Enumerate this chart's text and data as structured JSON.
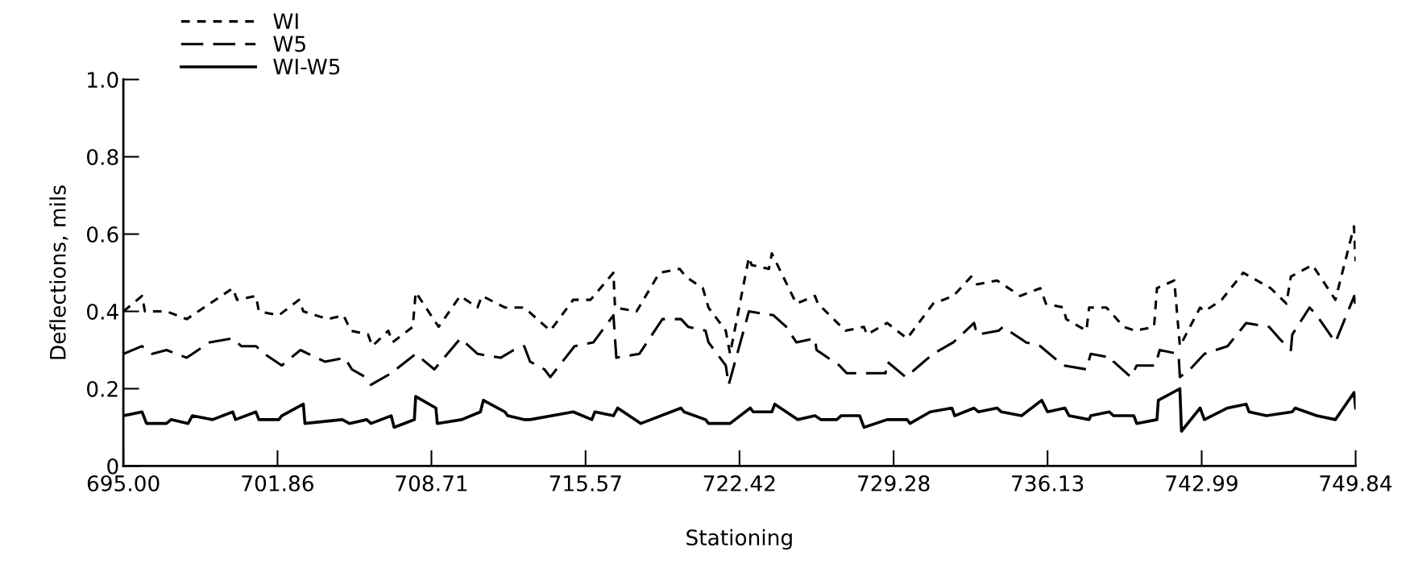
{
  "chart_data": {
    "type": "line",
    "xlabel": "Stationing",
    "ylabel": "Deflections, mils",
    "legend": "top left",
    "grid": false,
    "marker": "none",
    "xlim": [
      695.0,
      749.84
    ],
    "ylim": [
      0,
      1.0
    ],
    "yticks": [
      0,
      0.2,
      0.4,
      0.6,
      0.8,
      {
        "value": 1,
        "label": "1.0"
      }
    ],
    "xticks": [
      {
        "value": 695.0,
        "label": "695.00"
      },
      {
        "value": 701.86,
        "label": "701.86"
      },
      {
        "value": 708.71,
        "label": "708.71"
      },
      {
        "value": 715.57,
        "label": "715.57"
      },
      {
        "value": 722.42,
        "label": "722.42"
      },
      {
        "value": 729.28,
        "label": "729.28"
      },
      {
        "value": 736.13,
        "label": "736.13"
      },
      {
        "value": 742.99,
        "label": "742.99"
      },
      {
        "value": 749.84,
        "label": "749.84"
      }
    ],
    "series": [
      {
        "name": "WI",
        "color": "#000000",
        "line_style": "dotted",
        "x": [
          695.0,
          695.83,
          695.96,
          696.92,
          697.82,
          699.87,
          700.06,
          700.9,
          701.03,
          701.92,
          702.82,
          703.01,
          704.1,
          704.8,
          705.12,
          705.89,
          706.08,
          706.79,
          706.98,
          707.88,
          708.01,
          709.03,
          709.99,
          710.76,
          710.96,
          711.98,
          712.84,
          714.0,
          715.02,
          715.79,
          716.81,
          716.88,
          717.84,
          718.86,
          719.76,
          720.02,
          720.79,
          721.04,
          721.81,
          722.0,
          722.84,
          722.96,
          723.73,
          723.86,
          724.95,
          725.78,
          725.91,
          727.13,
          727.96,
          728.09,
          728.99,
          729.88,
          731.04,
          731.94,
          732.73,
          732.99,
          733.88,
          734.91,
          735.81,
          736.06,
          736.83,
          736.96,
          737.86,
          737.98,
          738.75,
          739.52,
          740.04,
          740.87,
          741.0,
          741.77,
          742.02,
          742.92,
          743.11,
          743.88,
          744.84,
          746.06,
          746.76,
          746.96,
          747.92,
          748.94,
          749.77,
          749.84
        ],
        "values": [
          0.4,
          0.44,
          0.4,
          0.4,
          0.38,
          0.46,
          0.43,
          0.44,
          0.4,
          0.39,
          0.43,
          0.4,
          0.38,
          0.39,
          0.35,
          0.34,
          0.31,
          0.35,
          0.32,
          0.36,
          0.45,
          0.36,
          0.44,
          0.41,
          0.44,
          0.41,
          0.41,
          0.35,
          0.43,
          0.43,
          0.5,
          0.41,
          0.4,
          0.5,
          0.51,
          0.49,
          0.46,
          0.41,
          0.35,
          0.29,
          0.54,
          0.52,
          0.51,
          0.55,
          0.42,
          0.44,
          0.42,
          0.35,
          0.36,
          0.34,
          0.37,
          0.33,
          0.42,
          0.44,
          0.49,
          0.47,
          0.48,
          0.44,
          0.46,
          0.42,
          0.41,
          0.38,
          0.35,
          0.41,
          0.41,
          0.36,
          0.35,
          0.36,
          0.46,
          0.48,
          0.31,
          0.41,
          0.4,
          0.43,
          0.5,
          0.46,
          0.42,
          0.49,
          0.52,
          0.43,
          0.62,
          0.53
        ]
      },
      {
        "name": "W5",
        "color": "#000000",
        "line_style": "dashed",
        "x": [
          695.0,
          695.83,
          696.28,
          696.92,
          697.82,
          698.84,
          699.87,
          700.25,
          700.9,
          701.28,
          702.05,
          702.88,
          703.97,
          704.85,
          705.17,
          705.77,
          706.02,
          706.92,
          708.01,
          708.84,
          710.0,
          710.77,
          711.79,
          712.37,
          712.84,
          713.1,
          713.74,
          714.0,
          715.08,
          715.92,
          716.81,
          716.94,
          717.96,
          718.99,
          719.82,
          720.14,
          720.91,
          721.04,
          721.81,
          721.94,
          722.84,
          723.93,
          724.5,
          724.95,
          725.78,
          725.85,
          726.87,
          727.19,
          728.92,
          728.99,
          729.82,
          731.04,
          731.94,
          732.86,
          732.99,
          733.95,
          734.14,
          735.17,
          735.81,
          736.83,
          737.86,
          738.05,
          739.01,
          739.07,
          739.84,
          740.1,
          740.93,
          741.12,
          741.96,
          742.02,
          742.47,
          743.11,
          744.14,
          744.97,
          745.99,
          746.44,
          746.96,
          747.02,
          747.79,
          748.11,
          748.94,
          749.78,
          749.84
        ],
        "values": [
          0.29,
          0.31,
          0.29,
          0.3,
          0.28,
          0.32,
          0.33,
          0.31,
          0.31,
          0.29,
          0.26,
          0.3,
          0.27,
          0.28,
          0.25,
          0.23,
          0.21,
          0.24,
          0.29,
          0.25,
          0.33,
          0.29,
          0.28,
          0.3,
          0.31,
          0.27,
          0.25,
          0.23,
          0.31,
          0.32,
          0.39,
          0.28,
          0.29,
          0.38,
          0.38,
          0.36,
          0.35,
          0.32,
          0.26,
          0.21,
          0.4,
          0.39,
          0.36,
          0.32,
          0.33,
          0.3,
          0.26,
          0.24,
          0.24,
          0.27,
          0.23,
          0.29,
          0.32,
          0.37,
          0.34,
          0.35,
          0.36,
          0.32,
          0.31,
          0.26,
          0.25,
          0.29,
          0.28,
          0.27,
          0.23,
          0.26,
          0.26,
          0.3,
          0.29,
          0.23,
          0.25,
          0.29,
          0.31,
          0.37,
          0.36,
          0.33,
          0.3,
          0.34,
          0.41,
          0.39,
          0.32,
          0.44,
          0.41
        ]
      },
      {
        "name": "WI-W5",
        "color": "#000000",
        "line_style": "solid",
        "x": [
          695.0,
          695.83,
          696.03,
          696.92,
          697.12,
          697.88,
          698.07,
          698.97,
          699.87,
          699.99,
          700.9,
          701.03,
          701.92,
          702.05,
          703.01,
          703.08,
          704.74,
          705.06,
          705.83,
          706.02,
          706.92,
          707.05,
          707.95,
          708.01,
          708.91,
          708.97,
          710.06,
          710.89,
          711.02,
          711.98,
          712.11,
          712.82,
          713.1,
          715.02,
          715.85,
          715.98,
          716.81,
          717.0,
          718.03,
          719.82,
          719.95,
          720.91,
          721.04,
          722.0,
          722.9,
          723.03,
          723.86,
          723.99,
          725.01,
          725.78,
          726.04,
          726.75,
          726.94,
          727.77,
          727.96,
          728.99,
          729.88,
          730.01,
          730.91,
          731.87,
          732.0,
          732.86,
          733.05,
          733.88,
          734.08,
          734.97,
          735.87,
          736.13,
          736.9,
          737.09,
          737.98,
          738.05,
          738.88,
          739.07,
          739.97,
          740.1,
          741.0,
          741.06,
          742.02,
          742.09,
          742.92,
          743.11,
          744.14,
          744.97,
          745.1,
          745.87,
          747.02,
          747.15,
          748.11,
          748.94,
          749.77,
          749.84
        ],
        "values": [
          0.13,
          0.14,
          0.11,
          0.11,
          0.12,
          0.11,
          0.13,
          0.12,
          0.14,
          0.12,
          0.14,
          0.12,
          0.12,
          0.13,
          0.16,
          0.11,
          0.12,
          0.11,
          0.12,
          0.11,
          0.13,
          0.1,
          0.12,
          0.18,
          0.15,
          0.11,
          0.12,
          0.14,
          0.17,
          0.14,
          0.13,
          0.12,
          0.12,
          0.14,
          0.12,
          0.14,
          0.13,
          0.15,
          0.11,
          0.15,
          0.14,
          0.12,
          0.11,
          0.11,
          0.15,
          0.14,
          0.14,
          0.16,
          0.12,
          0.13,
          0.12,
          0.12,
          0.13,
          0.13,
          0.1,
          0.12,
          0.12,
          0.11,
          0.14,
          0.15,
          0.13,
          0.15,
          0.14,
          0.15,
          0.14,
          0.13,
          0.17,
          0.14,
          0.15,
          0.13,
          0.12,
          0.13,
          0.14,
          0.13,
          0.13,
          0.11,
          0.12,
          0.17,
          0.2,
          0.09,
          0.15,
          0.12,
          0.15,
          0.16,
          0.14,
          0.13,
          0.14,
          0.15,
          0.13,
          0.12,
          0.19,
          0.15
        ]
      }
    ]
  }
}
